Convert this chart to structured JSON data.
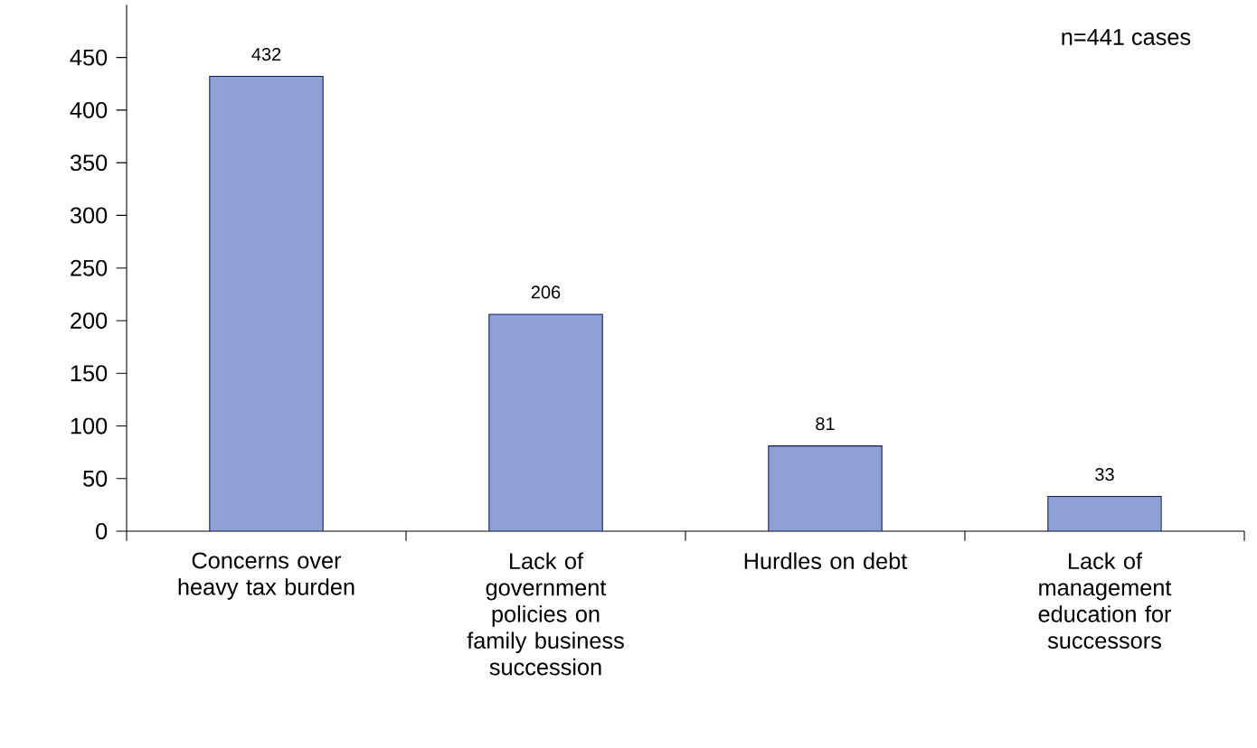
{
  "chart_data": {
    "type": "bar",
    "categories": [
      "Concerns over heavy tax burden",
      "Lack of government policies on family business succession",
      "Hurdles on debt",
      "Lack of management education for successors"
    ],
    "values": [
      432,
      206,
      81,
      33
    ],
    "color": "#8fa0d4",
    "ylim": [
      0,
      500
    ],
    "yticks": [
      0,
      50,
      100,
      150,
      200,
      250,
      300,
      350,
      400,
      450
    ],
    "data_labels": true,
    "annotations": [
      "n=441 cases"
    ]
  }
}
